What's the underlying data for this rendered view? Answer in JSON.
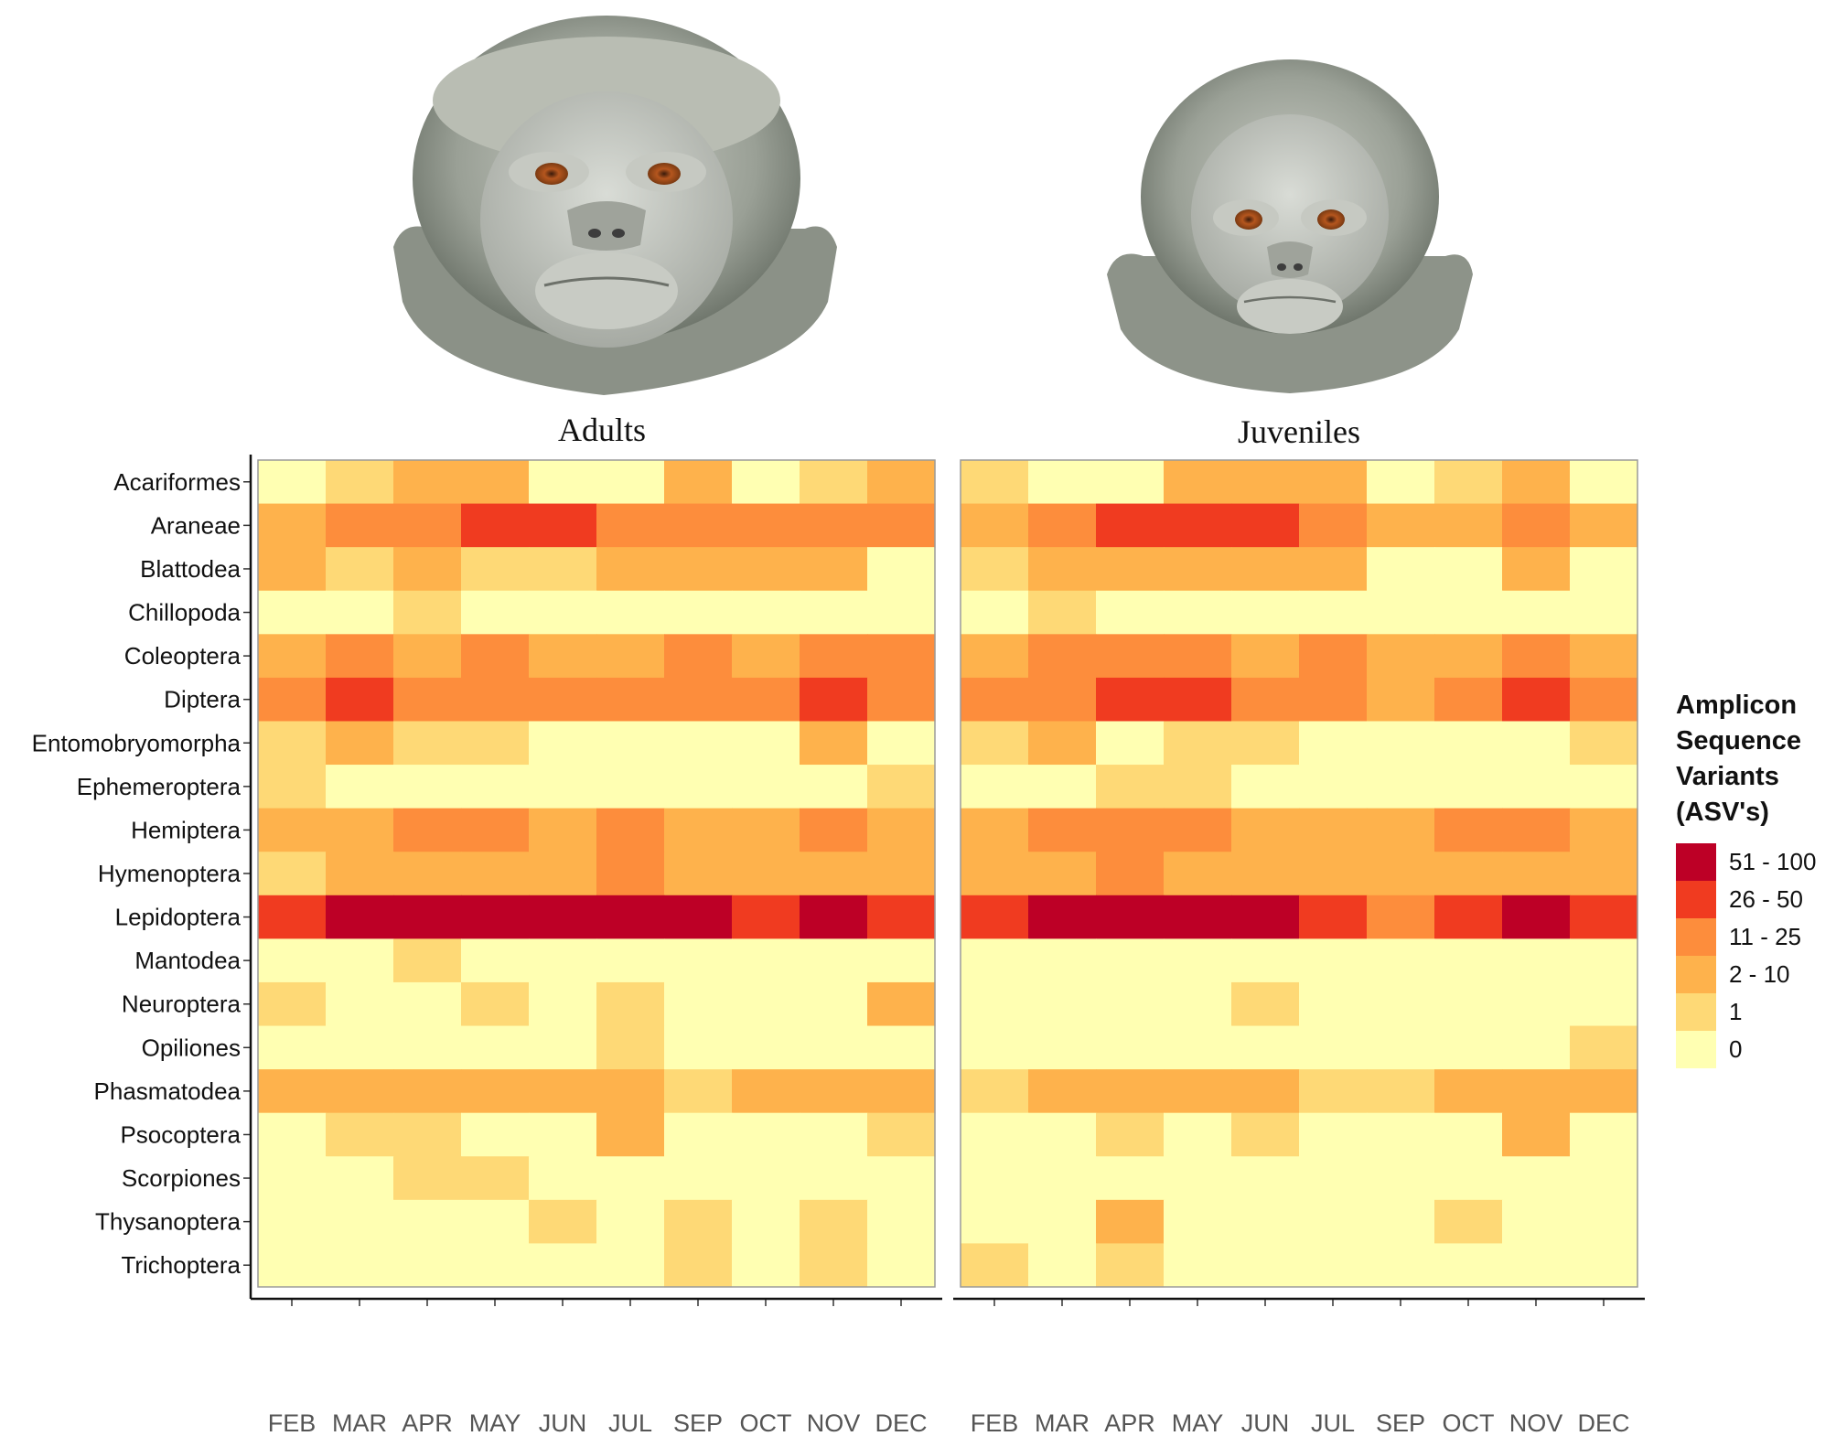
{
  "chart_data": {
    "type": "heatmap",
    "panels": [
      {
        "title": "Adults",
        "months": [
          "FEB",
          "MAR",
          "APR",
          "MAY",
          "JUN",
          "JUL",
          "SEP",
          "OCT",
          "NOV",
          "DEC"
        ],
        "orders": [
          "Acariformes",
          "Araneae",
          "Blattodea",
          "Chillopoda",
          "Coleoptera",
          "Diptera",
          "Entomobryomorpha",
          "Ephemeroptera",
          "Hemiptera",
          "Hymenoptera",
          "Lepidoptera",
          "Mantodea",
          "Neuroptera",
          "Opiliones",
          "Phasmatodea",
          "Psocoptera",
          "Scorpiones",
          "Thysanoptera",
          "Trichoptera"
        ],
        "values": [
          [
            "0",
            "1",
            "2 - 10",
            "2 - 10",
            "0",
            "0",
            "2 - 10",
            "0",
            "1",
            "2 - 10"
          ],
          [
            "2 - 10",
            "11 - 25",
            "11 - 25",
            "26 - 50",
            "26 - 50",
            "11 - 25",
            "11 - 25",
            "11 - 25",
            "11 - 25",
            "11 - 25"
          ],
          [
            "2 - 10",
            "1",
            "2 - 10",
            "1",
            "1",
            "2 - 10",
            "2 - 10",
            "2 - 10",
            "2 - 10",
            "0"
          ],
          [
            "0",
            "0",
            "1",
            "0",
            "0",
            "0",
            "0",
            "0",
            "0",
            "0"
          ],
          [
            "2 - 10",
            "11 - 25",
            "2 - 10",
            "11 - 25",
            "2 - 10",
            "2 - 10",
            "11 - 25",
            "2 - 10",
            "11 - 25",
            "11 - 25"
          ],
          [
            "11 - 25",
            "26 - 50",
            "11 - 25",
            "11 - 25",
            "11 - 25",
            "11 - 25",
            "11 - 25",
            "11 - 25",
            "26 - 50",
            "11 - 25"
          ],
          [
            "1",
            "2 - 10",
            "1",
            "1",
            "0",
            "0",
            "0",
            "0",
            "2 - 10",
            "0"
          ],
          [
            "1",
            "0",
            "0",
            "0",
            "0",
            "0",
            "0",
            "0",
            "0",
            "1"
          ],
          [
            "2 - 10",
            "2 - 10",
            "11 - 25",
            "11 - 25",
            "2 - 10",
            "11 - 25",
            "2 - 10",
            "2 - 10",
            "11 - 25",
            "2 - 10"
          ],
          [
            "1",
            "2 - 10",
            "2 - 10",
            "2 - 10",
            "2 - 10",
            "11 - 25",
            "2 - 10",
            "2 - 10",
            "2 - 10",
            "2 - 10"
          ],
          [
            "26 - 50",
            "51 - 100",
            "51 - 100",
            "51 - 100",
            "51 - 100",
            "51 - 100",
            "51 - 100",
            "26 - 50",
            "51 - 100",
            "26 - 50"
          ],
          [
            "0",
            "0",
            "1",
            "0",
            "0",
            "0",
            "0",
            "0",
            "0",
            "0"
          ],
          [
            "1",
            "0",
            "0",
            "1",
            "0",
            "1",
            "0",
            "0",
            "0",
            "2 - 10"
          ],
          [
            "0",
            "0",
            "0",
            "0",
            "0",
            "1",
            "0",
            "0",
            "0",
            "0"
          ],
          [
            "2 - 10",
            "2 - 10",
            "2 - 10",
            "2 - 10",
            "2 - 10",
            "2 - 10",
            "1",
            "2 - 10",
            "2 - 10",
            "2 - 10"
          ],
          [
            "0",
            "1",
            "1",
            "0",
            "0",
            "2 - 10",
            "0",
            "0",
            "0",
            "1"
          ],
          [
            "0",
            "0",
            "1",
            "1",
            "0",
            "0",
            "0",
            "0",
            "0",
            "0"
          ],
          [
            "0",
            "0",
            "0",
            "0",
            "1",
            "0",
            "1",
            "0",
            "1",
            "0"
          ],
          [
            "0",
            "0",
            "0",
            "0",
            "0",
            "0",
            "1",
            "0",
            "1",
            "0"
          ]
        ]
      },
      {
        "title": "Juveniles",
        "months": [
          "FEB",
          "MAR",
          "APR",
          "MAY",
          "JUN",
          "JUL",
          "SEP",
          "OCT",
          "NOV",
          "DEC"
        ],
        "orders": [
          "Acariformes",
          "Araneae",
          "Blattodea",
          "Chillopoda",
          "Coleoptera",
          "Diptera",
          "Entomobryomorpha",
          "Ephemeroptera",
          "Hemiptera",
          "Hymenoptera",
          "Lepidoptera",
          "Mantodea",
          "Neuroptera",
          "Opiliones",
          "Phasmatodea",
          "Psocoptera",
          "Scorpiones",
          "Thysanoptera",
          "Trichoptera"
        ],
        "values": [
          [
            "1",
            "0",
            "0",
            "2 - 10",
            "2 - 10",
            "2 - 10",
            "0",
            "1",
            "2 - 10",
            "0"
          ],
          [
            "2 - 10",
            "11 - 25",
            "26 - 50",
            "26 - 50",
            "26 - 50",
            "11 - 25",
            "2 - 10",
            "2 - 10",
            "11 - 25",
            "2 - 10"
          ],
          [
            "1",
            "2 - 10",
            "2 - 10",
            "2 - 10",
            "2 - 10",
            "2 - 10",
            "0",
            "0",
            "2 - 10",
            "0"
          ],
          [
            "0",
            "1",
            "0",
            "0",
            "0",
            "0",
            "0",
            "0",
            "0",
            "0"
          ],
          [
            "2 - 10",
            "11 - 25",
            "11 - 25",
            "11 - 25",
            "2 - 10",
            "11 - 25",
            "2 - 10",
            "2 - 10",
            "11 - 25",
            "2 - 10"
          ],
          [
            "11 - 25",
            "11 - 25",
            "26 - 50",
            "26 - 50",
            "11 - 25",
            "11 - 25",
            "2 - 10",
            "11 - 25",
            "26 - 50",
            "11 - 25"
          ],
          [
            "1",
            "2 - 10",
            "0",
            "1",
            "1",
            "0",
            "0",
            "0",
            "0",
            "1"
          ],
          [
            "0",
            "0",
            "1",
            "1",
            "0",
            "0",
            "0",
            "0",
            "0",
            "0"
          ],
          [
            "2 - 10",
            "11 - 25",
            "11 - 25",
            "11 - 25",
            "2 - 10",
            "2 - 10",
            "2 - 10",
            "11 - 25",
            "11 - 25",
            "2 - 10"
          ],
          [
            "2 - 10",
            "2 - 10",
            "11 - 25",
            "2 - 10",
            "2 - 10",
            "2 - 10",
            "2 - 10",
            "2 - 10",
            "2 - 10",
            "2 - 10"
          ],
          [
            "26 - 50",
            "51 - 100",
            "51 - 100",
            "51 - 100",
            "51 - 100",
            "26 - 50",
            "11 - 25",
            "26 - 50",
            "51 - 100",
            "26 - 50"
          ],
          [
            "0",
            "0",
            "0",
            "0",
            "0",
            "0",
            "0",
            "0",
            "0",
            "0"
          ],
          [
            "0",
            "0",
            "0",
            "0",
            "1",
            "0",
            "0",
            "0",
            "0",
            "0"
          ],
          [
            "0",
            "0",
            "0",
            "0",
            "0",
            "0",
            "0",
            "0",
            "0",
            "1"
          ],
          [
            "1",
            "2 - 10",
            "2 - 10",
            "2 - 10",
            "2 - 10",
            "1",
            "1",
            "2 - 10",
            "2 - 10",
            "2 - 10"
          ],
          [
            "0",
            "0",
            "1",
            "0",
            "1",
            "0",
            "0",
            "0",
            "2 - 10",
            "0"
          ],
          [
            "0",
            "0",
            "0",
            "0",
            "0",
            "0",
            "0",
            "0",
            "0",
            "0"
          ],
          [
            "0",
            "0",
            "2 - 10",
            "0",
            "0",
            "0",
            "0",
            "1",
            "0",
            "0"
          ],
          [
            "1",
            "0",
            "1",
            "0",
            "0",
            "0",
            "0",
            "0",
            "0",
            "0"
          ]
        ]
      }
    ],
    "legend": {
      "title_lines": [
        "Amplicon",
        "Sequence",
        "Variants",
        "(ASV's)"
      ],
      "categories": [
        "51 - 100",
        "26 - 50",
        "11 - 25",
        "2 - 10",
        "1",
        "0"
      ],
      "colors": {
        "51 - 100": "#bd0026",
        "26 - 50": "#f03b20",
        "11 - 25": "#fd8d3c",
        "2 - 10": "#feb24c",
        "1": "#fed976",
        "0": "#ffffb2"
      }
    },
    "illustrations": [
      "adult-monkey-head-illustration",
      "juvenile-monkey-head-illustration"
    ]
  }
}
